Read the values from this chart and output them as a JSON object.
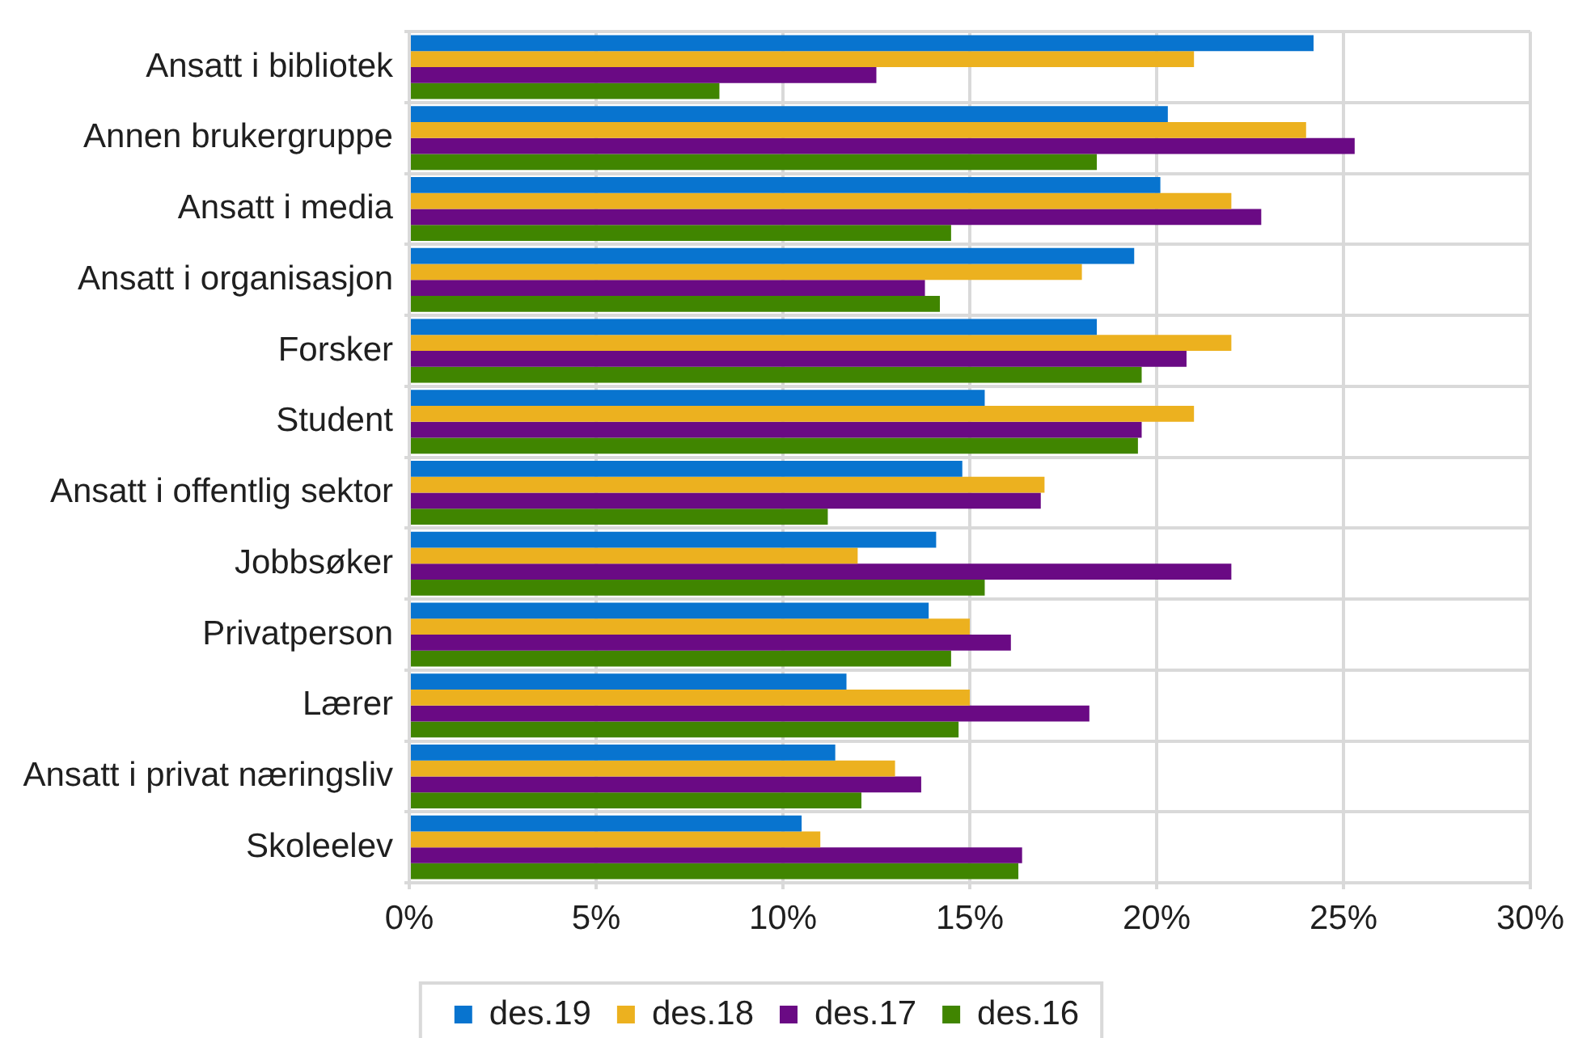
{
  "chart_data": {
    "type": "bar",
    "orientation": "horizontal",
    "categories": [
      "Ansatt i bibliotek",
      "Annen brukergruppe",
      "Ansatt i media",
      "Ansatt i organisasjon",
      "Forsker",
      "Student",
      "Ansatt i offentlig sektor",
      "Jobbsøker",
      "Privatperson",
      "Lærer",
      "Ansatt i privat næringsliv",
      "Skoleelev"
    ],
    "series": [
      {
        "name": "des.19",
        "color": "#0874cf",
        "values": [
          24.2,
          20.3,
          20.1,
          19.4,
          18.4,
          15.4,
          14.8,
          14.1,
          13.9,
          11.7,
          11.4,
          10.5
        ]
      },
      {
        "name": "des.18",
        "color": "#ecb11f",
        "values": [
          21.0,
          24.0,
          22.0,
          18.0,
          22.0,
          21.0,
          17.0,
          12.0,
          15.0,
          15.0,
          13.0,
          11.0
        ]
      },
      {
        "name": "des.17",
        "color": "#6a0a84",
        "values": [
          12.5,
          25.3,
          22.8,
          13.8,
          20.8,
          19.6,
          16.9,
          22.0,
          16.1,
          18.2,
          13.7,
          16.4
        ]
      },
      {
        "name": "des.16",
        "color": "#408500",
        "values": [
          8.3,
          18.4,
          14.5,
          14.2,
          19.6,
          19.5,
          11.2,
          15.4,
          14.5,
          14.7,
          12.1,
          16.3
        ]
      }
    ],
    "xlim": [
      0,
      30
    ],
    "xticks": [
      {
        "value": 0,
        "label": "0%"
      },
      {
        "value": 5,
        "label": "5%"
      },
      {
        "value": 10,
        "label": "10%"
      },
      {
        "value": 15,
        "label": "15%"
      },
      {
        "value": 20,
        "label": "20%"
      },
      {
        "value": 25,
        "label": "25%"
      },
      {
        "value": 30,
        "label": "30%"
      }
    ],
    "grid": true,
    "legend": "bottom"
  }
}
